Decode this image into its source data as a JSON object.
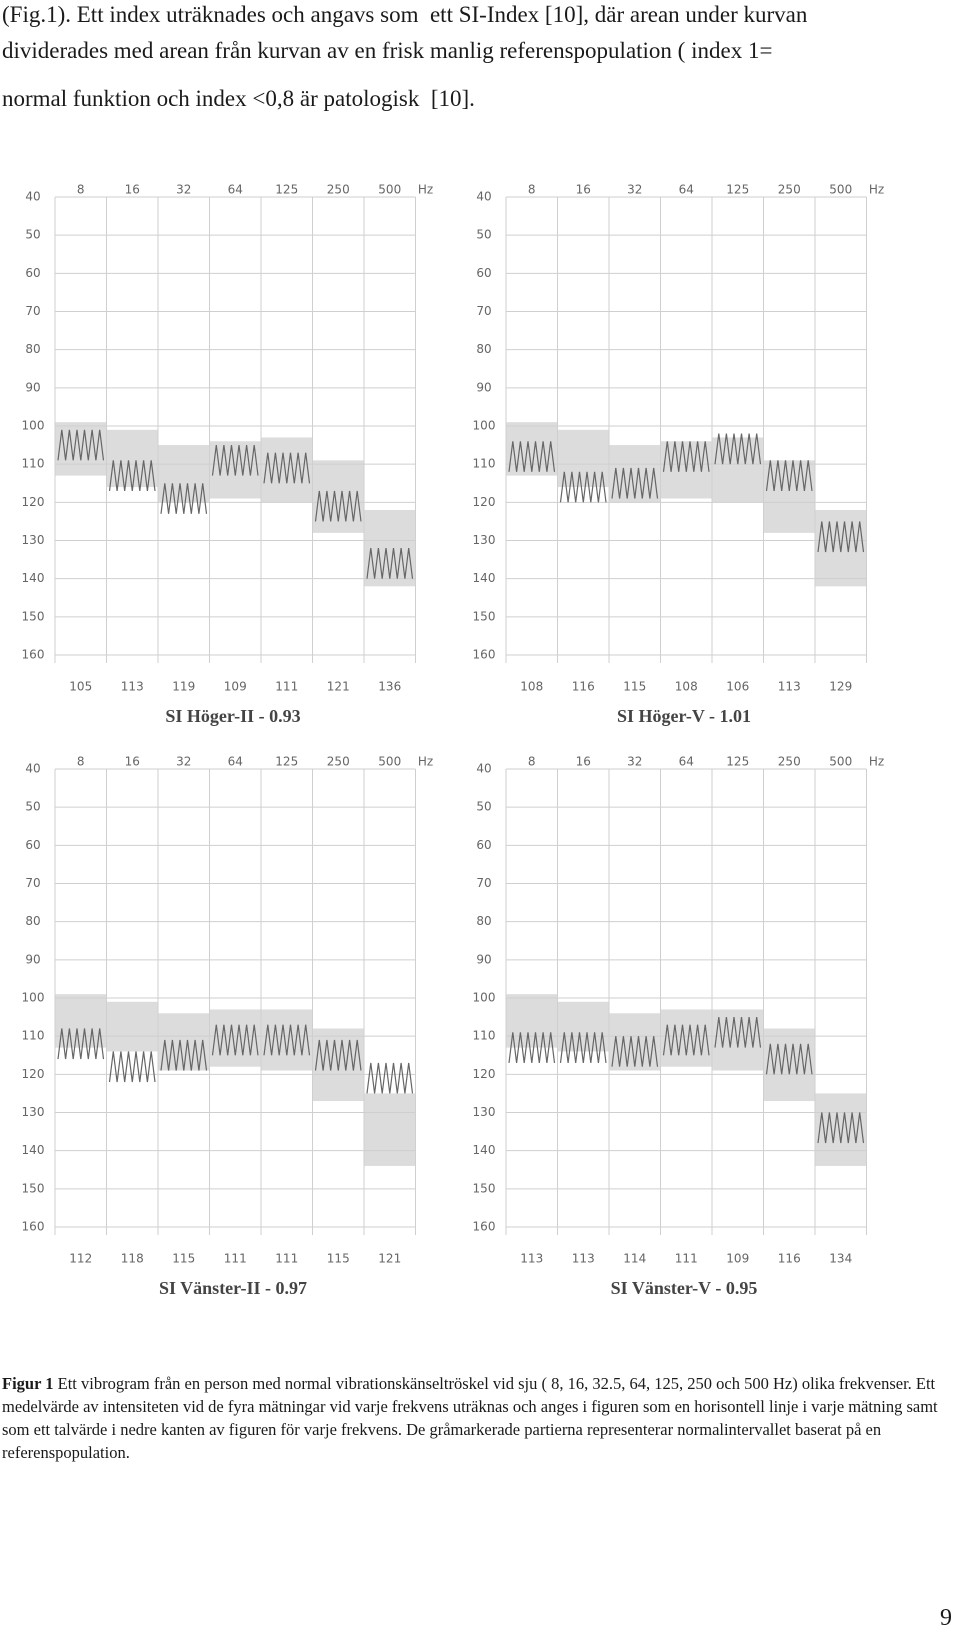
{
  "intro_lines": [
    "(Fig.1). Ett index uträknades och angavs som  ett SI-Index [10], där arean under kurvan",
    "dividerades med arean från kurvan av en frisk manlig referenspopulation ( index 1=",
    "normal funktion och index <0,8 är patologisk  [10]."
  ],
  "chart_data": [
    {
      "type": "vibrogram",
      "title": "SI Höger-II - 0.93",
      "categories": [
        "8",
        "16",
        "32",
        "64",
        "125",
        "250",
        "500"
      ],
      "x_unit": "Hz",
      "values": [
        105,
        113,
        119,
        109,
        111,
        121,
        136
      ],
      "normal_low": [
        99,
        101,
        105,
        104,
        103,
        109,
        122
      ],
      "normal_high": [
        113,
        116,
        120,
        119,
        120,
        128,
        142
      ],
      "band_color": "#dcdcdc",
      "line_color": "#666666",
      "ylim": [
        40,
        160
      ],
      "yticks": [
        40,
        50,
        60,
        70,
        80,
        90,
        100,
        110,
        120,
        130,
        140,
        150,
        160
      ],
      "grid": true
    },
    {
      "type": "vibrogram",
      "title": "SI Höger-V - 1.01",
      "categories": [
        "8",
        "16",
        "32",
        "64",
        "125",
        "250",
        "500"
      ],
      "x_unit": "Hz",
      "values": [
        108,
        116,
        115,
        108,
        106,
        113,
        129
      ],
      "normal_low": [
        99,
        101,
        105,
        104,
        103,
        109,
        122
      ],
      "normal_high": [
        113,
        116,
        120,
        119,
        120,
        128,
        142
      ],
      "band_color": "#dcdcdc",
      "line_color": "#666666",
      "ylim": [
        40,
        160
      ],
      "yticks": [
        40,
        50,
        60,
        70,
        80,
        90,
        100,
        110,
        120,
        130,
        140,
        150,
        160
      ],
      "grid": true
    },
    {
      "type": "vibrogram",
      "title": "SI Vänster-II - 0.97",
      "categories": [
        "8",
        "16",
        "32",
        "64",
        "125",
        "250",
        "500"
      ],
      "x_unit": "Hz",
      "values": [
        112,
        118,
        115,
        111,
        111,
        115,
        121
      ],
      "normal_low": [
        99,
        101,
        104,
        103,
        103,
        108,
        125
      ],
      "normal_high": [
        113,
        114,
        119,
        118,
        119,
        127,
        144
      ],
      "band_color": "#dcdcdc",
      "line_color": "#666666",
      "ylim": [
        40,
        160
      ],
      "yticks": [
        40,
        50,
        60,
        70,
        80,
        90,
        100,
        110,
        120,
        130,
        140,
        150,
        160
      ],
      "grid": true
    },
    {
      "type": "vibrogram",
      "title": "SI Vänster-V - 0.95",
      "categories": [
        "8",
        "16",
        "32",
        "64",
        "125",
        "250",
        "500"
      ],
      "x_unit": "Hz",
      "values": [
        113,
        113,
        114,
        111,
        109,
        116,
        134
      ],
      "normal_low": [
        99,
        101,
        104,
        103,
        103,
        108,
        125
      ],
      "normal_high": [
        113,
        114,
        119,
        118,
        119,
        127,
        144
      ],
      "band_color": "#dcdcdc",
      "line_color": "#666666",
      "ylim": [
        40,
        160
      ],
      "yticks": [
        40,
        50,
        60,
        70,
        80,
        90,
        100,
        110,
        120,
        130,
        140,
        150,
        160
      ],
      "grid": true
    }
  ],
  "caption": {
    "label": "Figur 1",
    "text": "Ett vibrogram  från en person med normal vibrationskänseltröskel vid sju ( 8, 16, 32.5, 64, 125, 250 och 500 Hz) olika frekvenser. Ett medelvärde av intensiteten vid de fyra mätningar vid varje frekvens uträknas och anges i figuren som en horisontell linje i varje mätning samt som ett talvärde i nedre kanten av figuren för varje frekvens. De gråmarkerade partierna representerar normalintervallet baserat på en referenspopulation."
  },
  "page_number": "9"
}
